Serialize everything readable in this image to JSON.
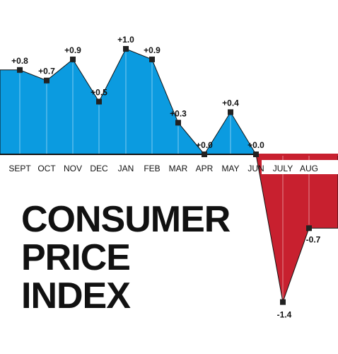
{
  "title_lines": [
    "CONSUMER",
    "PRICE",
    "INDEX"
  ],
  "colors": {
    "positive_fill": "#0b9be0",
    "negative_fill": "#c8202f",
    "baseline": "#111111",
    "marker": "#222222",
    "text": "#111111"
  },
  "chart_data": {
    "type": "area",
    "title": "CONSUMER PRICE INDEX",
    "categories": [
      "SEPT",
      "OCT",
      "NOV",
      "DEC",
      "JAN",
      "FEB",
      "MAR",
      "APR",
      "MAY",
      "JUN",
      "JULY",
      "AUG"
    ],
    "values": [
      0.8,
      0.7,
      0.9,
      0.5,
      1.0,
      0.9,
      0.3,
      0.0,
      0.4,
      0.0,
      -1.4,
      -0.7
    ],
    "labels": [
      "+0.8",
      "+0.7",
      "+0.9",
      "+0.5",
      "+1.0",
      "+0.9",
      "+0.3",
      "+0.0",
      "+0.4",
      "+0.0",
      "-1.4",
      "-0.7"
    ],
    "xlabel": "",
    "ylabel": "",
    "grid": false,
    "legend": "none"
  }
}
